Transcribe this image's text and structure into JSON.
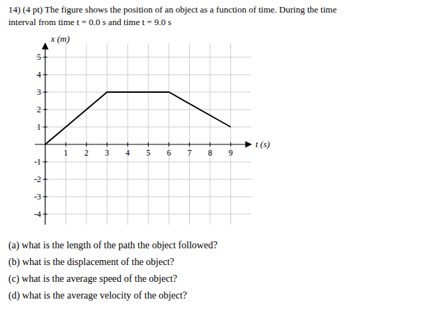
{
  "chart_data": {
    "type": "line",
    "title": "14) (4 pt) The figure shows the position of an object as a function of time. During the time",
    "subtitle": "interval from time t = 0.0 s and time t = 9.0 s",
    "x_label": "t (s)",
    "y_label": "x (m)",
    "x": [
      0,
      3,
      6,
      9
    ],
    "series": [
      {
        "name": "x (m)",
        "color": "#000000",
        "values": [
          0,
          3,
          3,
          1
        ]
      }
    ],
    "xlim": [
      -0.5,
      10.0
    ],
    "ylim": [
      -4.6,
      5.8
    ],
    "xticks": [
      1,
      2,
      3,
      4,
      5,
      6,
      7,
      8,
      9
    ],
    "yticks": [
      -4,
      -3,
      -2,
      -1,
      1,
      2,
      3,
      4,
      5
    ],
    "grid": true,
    "annotations": [
      "(a) what is the length of the path the object followed?",
      "(b) what is the displacement of the object?",
      "(c) what is the average speed of the object?",
      "(d) what is the average velocity of the object?"
    ]
  }
}
